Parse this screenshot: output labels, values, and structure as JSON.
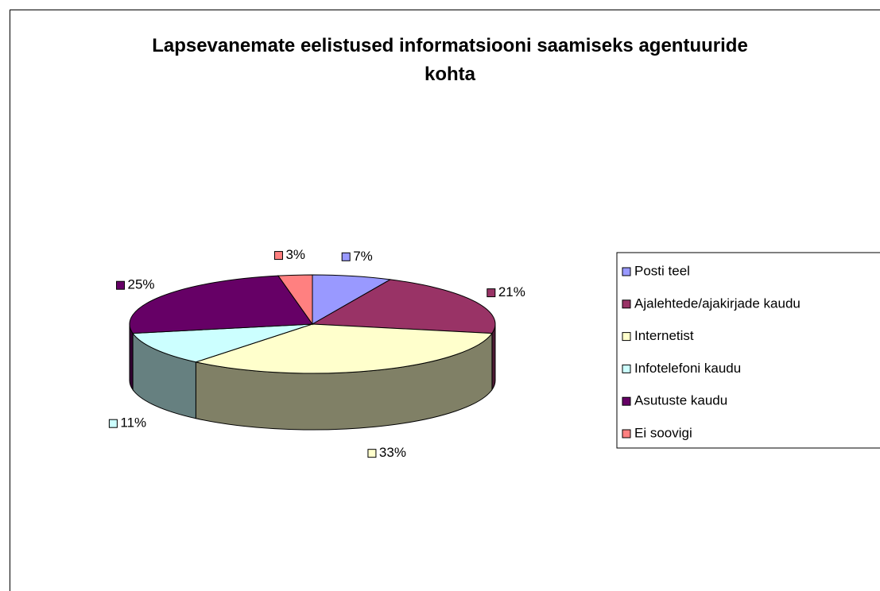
{
  "chart_data": {
    "type": "pie3d",
    "title": "Lapsevanemate eelistused informatsiooni saamiseks agentuuride kohta",
    "categories": [
      "Posti teel",
      "Ajalehtede/ajakirjade kaudu",
      "Internetist",
      "Infotelefoni kaudu",
      "Asutuste kaudu",
      "Ei soovigi"
    ],
    "values": [
      7,
      21,
      33,
      11,
      25,
      3
    ],
    "value_labels": [
      "7%",
      "21%",
      "33%",
      "11%",
      "25%",
      "3%"
    ],
    "colors": [
      "#9999ff",
      "#993366",
      "#ffffcc",
      "#ccffff",
      "#660066",
      "#ff8080"
    ],
    "legend": "right"
  }
}
